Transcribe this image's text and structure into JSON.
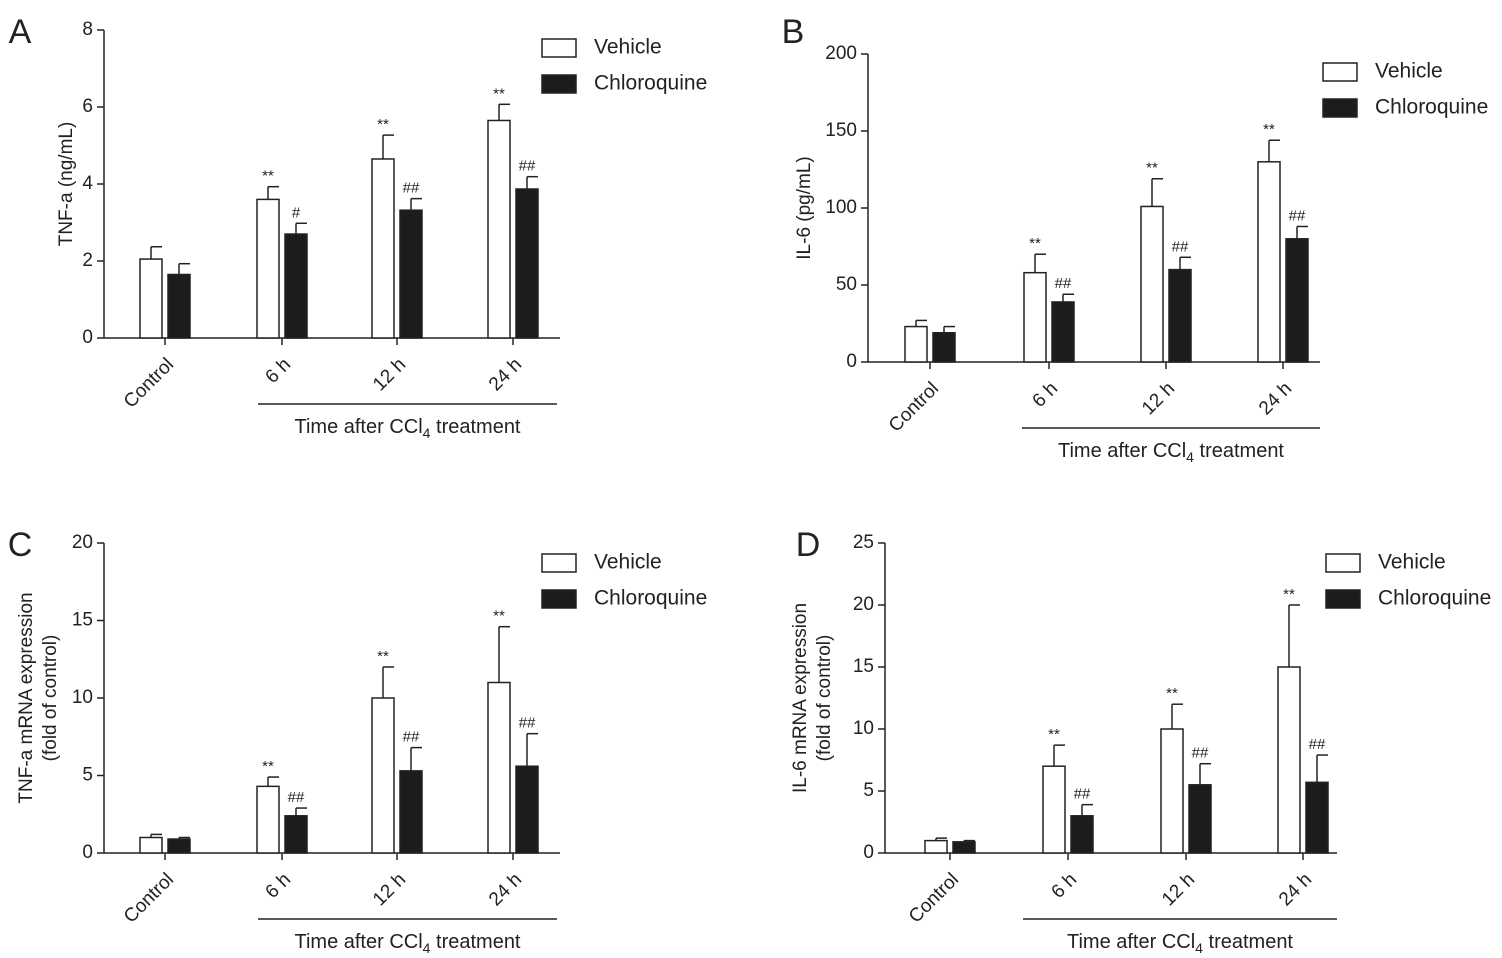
{
  "colors": {
    "vehicle_fill": "#ffffff",
    "chloroquine_fill": "#1c1c1c",
    "axis": "#222222"
  },
  "chart_data": [
    {
      "panel": "A",
      "type": "bar",
      "categories": [
        "Control",
        "6 h",
        "12 h",
        "24 h"
      ],
      "ylabel": [
        "TNF-a (ng/mL)"
      ],
      "ylim": [
        0,
        8
      ],
      "yticks": [
        0,
        2,
        4,
        6,
        8
      ],
      "group_label": {
        "prefix": "Time after CCl",
        "subscript": "4",
        "suffix": " treatment"
      },
      "legend_position": "top-right",
      "series": [
        {
          "name": "Vehicle",
          "values": [
            2.05,
            3.6,
            4.65,
            5.65
          ],
          "errors": [
            0.32,
            0.33,
            0.62,
            0.42
          ],
          "annotations": [
            "",
            "**",
            "**",
            "**"
          ]
        },
        {
          "name": "Chloroquine",
          "values": [
            1.65,
            2.7,
            3.32,
            3.87
          ],
          "errors": [
            0.28,
            0.28,
            0.3,
            0.32
          ],
          "annotations": [
            "",
            "#",
            "##",
            "##"
          ]
        }
      ]
    },
    {
      "panel": "B",
      "type": "bar",
      "categories": [
        "Control",
        "6 h",
        "12 h",
        "24 h"
      ],
      "ylabel": [
        "IL-6 (pg/mL)"
      ],
      "ylim": [
        0,
        200
      ],
      "yticks": [
        0,
        50,
        100,
        150,
        200
      ],
      "group_label": {
        "prefix": "Time after CCl",
        "subscript": "4",
        "suffix": " treatment"
      },
      "legend_position": "top-right",
      "series": [
        {
          "name": "Vehicle",
          "values": [
            23,
            58,
            101,
            130
          ],
          "errors": [
            4,
            12,
            18,
            14
          ],
          "annotations": [
            "",
            "**",
            "**",
            "**"
          ]
        },
        {
          "name": "Chloroquine",
          "values": [
            19,
            39,
            60,
            80
          ],
          "errors": [
            4,
            5,
            8,
            8
          ],
          "annotations": [
            "",
            "##",
            "##",
            "##"
          ]
        }
      ]
    },
    {
      "panel": "C",
      "type": "bar",
      "categories": [
        "Control",
        "6 h",
        "12 h",
        "24 h"
      ],
      "ylabel": [
        "TNF-a mRNA expression",
        "(fold of control)"
      ],
      "ylim": [
        0,
        20
      ],
      "yticks": [
        0,
        5,
        10,
        15,
        20
      ],
      "group_label": {
        "prefix": "Time after CCl",
        "subscript": "4",
        "suffix": " treatment"
      },
      "legend_position": "top-right",
      "series": [
        {
          "name": "Vehicle",
          "values": [
            1.0,
            4.3,
            10.0,
            11.0
          ],
          "errors": [
            0.2,
            0.6,
            2.0,
            3.6
          ],
          "annotations": [
            "",
            "**",
            "**",
            "**"
          ]
        },
        {
          "name": "Chloroquine",
          "values": [
            0.9,
            2.4,
            5.3,
            5.6
          ],
          "errors": [
            0.1,
            0.5,
            1.5,
            2.1
          ],
          "annotations": [
            "",
            "##",
            "##",
            "##"
          ]
        }
      ]
    },
    {
      "panel": "D",
      "type": "bar",
      "categories": [
        "Control",
        "6 h",
        "12 h",
        "24 h"
      ],
      "ylabel": [
        "IL-6 mRNA expression",
        "(fold of control)"
      ],
      "ylim": [
        0,
        25
      ],
      "yticks": [
        0,
        5,
        10,
        15,
        20,
        25
      ],
      "group_label": {
        "prefix": "Time after CCl",
        "subscript": "4",
        "suffix": " treatment"
      },
      "legend_position": "top-right",
      "series": [
        {
          "name": "Vehicle",
          "values": [
            1.0,
            7.0,
            10.0,
            15.0
          ],
          "errors": [
            0.2,
            1.7,
            2.0,
            5.0
          ],
          "annotations": [
            "",
            "**",
            "**",
            "**"
          ]
        },
        {
          "name": "Chloroquine",
          "values": [
            0.9,
            3.0,
            5.5,
            5.7
          ],
          "errors": [
            0.1,
            0.9,
            1.7,
            2.2
          ],
          "annotations": [
            "",
            "##",
            "##",
            "##"
          ]
        }
      ]
    }
  ]
}
